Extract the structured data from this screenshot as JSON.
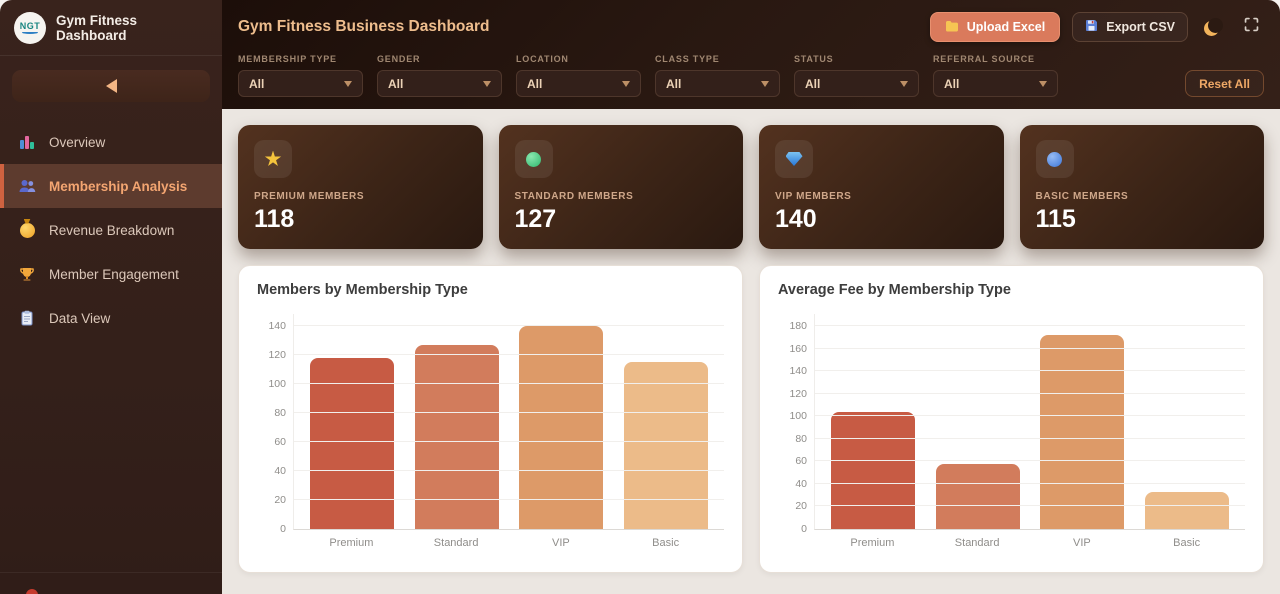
{
  "sidebar": {
    "logo_text": "NGT",
    "title": "Gym Fitness Dashboard",
    "collapse_icon": "left-triangle",
    "items": [
      {
        "icon": "bar-chart",
        "label": "Overview",
        "active": false
      },
      {
        "icon": "people",
        "label": "Membership Analysis",
        "active": true
      },
      {
        "icon": "money-bag",
        "label": "Revenue Breakdown",
        "active": false
      },
      {
        "icon": "trophy",
        "label": "Member Engagement",
        "active": false
      },
      {
        "icon": "clipboard",
        "label": "Data View",
        "active": false
      }
    ]
  },
  "header": {
    "title": "Gym Fitness Business Dashboard",
    "upload_button": {
      "icon": "folder",
      "label": "Upload Excel"
    },
    "export_button": {
      "icon": "floppy-disk",
      "label": "Export CSV"
    },
    "theme_icon": "crescent-moon",
    "fullscreen_icon": "corner-brackets"
  },
  "filters": {
    "groups": [
      {
        "label": "MEMBERSHIP TYPE",
        "value": "All"
      },
      {
        "label": "GENDER",
        "value": "All"
      },
      {
        "label": "LOCATION",
        "value": "All"
      },
      {
        "label": "CLASS TYPE",
        "value": "All"
      },
      {
        "label": "STATUS",
        "value": "All"
      },
      {
        "label": "REFERRAL SOURCE",
        "value": "All"
      }
    ],
    "reset_label": "Reset All"
  },
  "stats": [
    {
      "icon": "star",
      "label": "PREMIUM MEMBERS",
      "value": "118"
    },
    {
      "icon": "green-circle",
      "label": "STANDARD MEMBERS",
      "value": "127"
    },
    {
      "icon": "gem",
      "label": "VIP MEMBERS",
      "value": "140"
    },
    {
      "icon": "blue-circle",
      "label": "BASIC MEMBERS",
      "value": "115"
    }
  ],
  "chart_data": [
    {
      "type": "bar",
      "title": "Members by Membership Type",
      "categories": [
        "Premium",
        "Standard",
        "VIP",
        "Basic"
      ],
      "values": [
        118,
        127,
        140,
        115
      ],
      "colors": [
        "#c75b44",
        "#d27c5c",
        "#dd9a68",
        "#ecbb89"
      ],
      "xlabel": "",
      "ylabel": "",
      "ylim": [
        0,
        140
      ],
      "ytick_step": 20,
      "grid": true,
      "legend": false
    },
    {
      "type": "bar",
      "title": "Average Fee by Membership Type",
      "categories": [
        "Premium",
        "Standard",
        "VIP",
        "Basic"
      ],
      "values": [
        104,
        58,
        172,
        33
      ],
      "colors": [
        "#c75b44",
        "#d27c5c",
        "#dd9a68",
        "#ecbb89"
      ],
      "xlabel": "",
      "ylabel": "",
      "ylim": [
        0,
        180
      ],
      "ytick_step": 20,
      "grid": true,
      "legend": false
    }
  ]
}
